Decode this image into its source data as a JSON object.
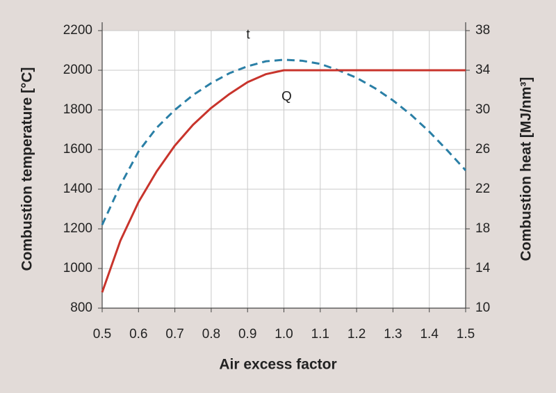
{
  "chart_data": {
    "type": "line",
    "x_label": "Air excess factor",
    "y_label": "Combustion temperature [°C]",
    "y2_label": "Combustion heat [MJ/nm³]",
    "x": [
      0.5,
      0.55,
      0.6,
      0.65,
      0.7,
      0.75,
      0.8,
      0.85,
      0.9,
      0.95,
      1.0,
      1.05,
      1.1,
      1.15,
      1.2,
      1.25,
      1.3,
      1.35,
      1.4,
      1.45,
      1.5
    ],
    "series": [
      {
        "name": "t",
        "color": "#2a7fa6",
        "dashed": true,
        "values": [
          1220,
          1420,
          1590,
          1710,
          1800,
          1875,
          1935,
          1985,
          2020,
          2045,
          2053,
          2048,
          2032,
          2000,
          1962,
          1910,
          1848,
          1775,
          1690,
          1595,
          1495
        ]
      },
      {
        "name": "Q",
        "color": "#c8342c",
        "axis": "y2",
        "dashed": false,
        "values": [
          11.6,
          16.8,
          20.7,
          23.8,
          26.4,
          28.5,
          30.2,
          31.6,
          32.8,
          33.6,
          34,
          34,
          34,
          34,
          34,
          34,
          34,
          34,
          34,
          34,
          34
        ]
      }
    ],
    "xlim": [
      0.5,
      1.5
    ],
    "xticks": [
      0.5,
      0.6,
      0.7,
      0.8,
      0.9,
      {
        "value": 1,
        "label": "1.0"
      },
      1.1,
      1.2,
      1.3,
      1.4,
      1.5
    ],
    "ylim": [
      800,
      2200
    ],
    "yticks": [
      800,
      1000,
      1200,
      1400,
      1600,
      1800,
      2000,
      2200
    ],
    "y2lim": [
      10,
      38
    ],
    "y2ticks": [
      10,
      14,
      18,
      22,
      26,
      30,
      34,
      38
    ],
    "grid": true
  }
}
